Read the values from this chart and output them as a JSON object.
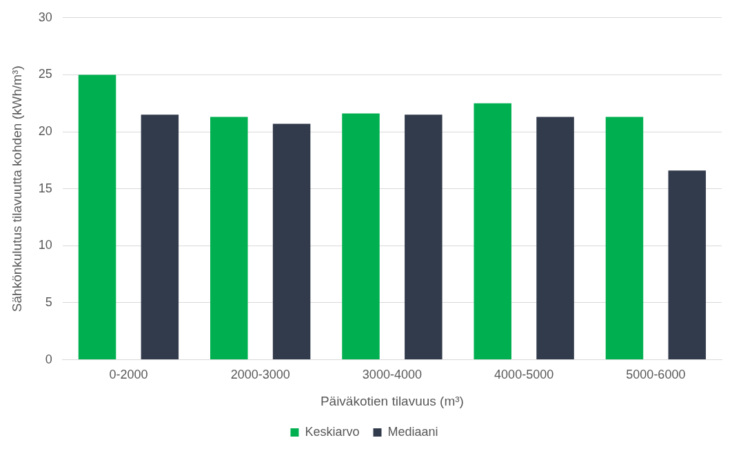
{
  "chart_data": {
    "type": "bar",
    "xlabel": "Päiväkotien tilavuus (m³)",
    "ylabel": "Sähkönkulutus tilavuutta kohden (kWh/m³)",
    "categories": [
      "0-2000",
      "2000-3000",
      "3000-4000",
      "4000-5000",
      "5000-6000"
    ],
    "series": [
      {
        "name": "Keskiarvo",
        "color": "#00b050",
        "values": [
          25.0,
          21.3,
          21.6,
          22.5,
          21.3
        ]
      },
      {
        "name": "Mediaani",
        "color": "#323b4c",
        "values": [
          21.5,
          20.7,
          21.5,
          21.3,
          16.6
        ]
      }
    ],
    "ylim": [
      0,
      30
    ],
    "yticks": [
      0,
      5,
      10,
      15,
      20,
      25,
      30
    ],
    "grid": "y",
    "legend": "bottom"
  }
}
